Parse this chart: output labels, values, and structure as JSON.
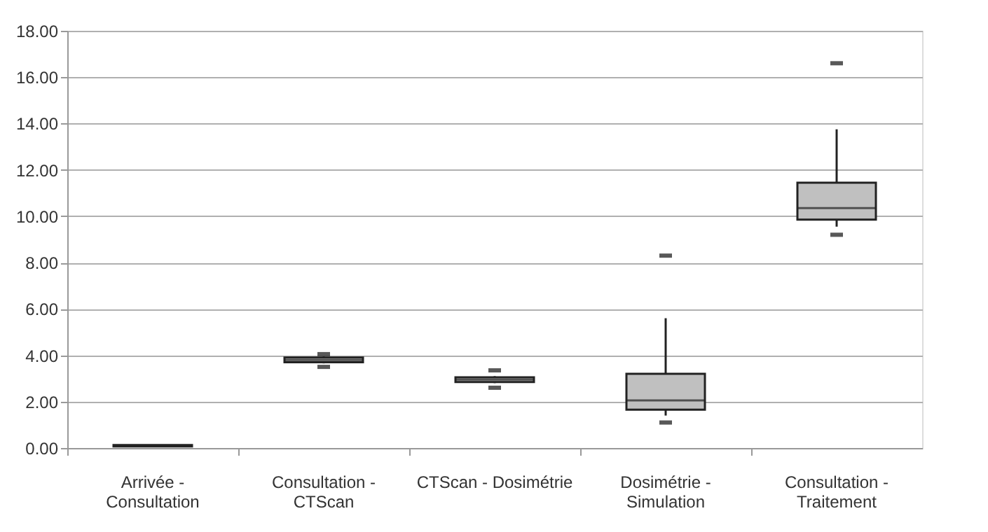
{
  "chart_data": {
    "type": "box",
    "categories": [
      "Arrivée - Consultation",
      "Consultation - CTScan",
      "CTScan - Dosimétrie",
      "Dosimétrie - Simulation",
      "Consultation - Traitement"
    ],
    "boxes": [
      {
        "low": 0.05,
        "q1": 0.07,
        "median": 0.1,
        "q3": 0.13,
        "high": 0.15
      },
      {
        "low": 3.65,
        "q1": 3.7,
        "median": 3.8,
        "q3": 3.9,
        "high": 3.95,
        "outliers": [
          3.5,
          4.05
        ]
      },
      {
        "low": 2.8,
        "q1": 2.85,
        "median": 2.95,
        "q3": 3.05,
        "high": 3.1,
        "outliers": [
          2.6,
          3.35
        ]
      },
      {
        "low": 1.4,
        "q1": 1.65,
        "median": 2.05,
        "q3": 3.2,
        "high": 5.6,
        "outliers": [
          1.1,
          8.3
        ]
      },
      {
        "low": 9.55,
        "q1": 9.85,
        "median": 10.35,
        "q3": 11.45,
        "high": 13.75,
        "outliers": [
          9.2,
          16.6
        ]
      }
    ],
    "color": "#c0c0c0",
    "ylim": [
      0,
      18
    ],
    "yticks": [
      {
        "value": 0,
        "label": "0.00"
      },
      {
        "value": 2,
        "label": "2.00"
      },
      {
        "value": 4,
        "label": "4.00"
      },
      {
        "value": 6,
        "label": "6.00"
      },
      {
        "value": 8,
        "label": "8.00"
      },
      {
        "value": 10,
        "label": "10.00"
      },
      {
        "value": 12,
        "label": "12.00"
      },
      {
        "value": 14,
        "label": "14.00"
      },
      {
        "value": 16,
        "label": "16.00"
      },
      {
        "value": 18,
        "label": "18.00"
      }
    ],
    "grid": "y"
  }
}
